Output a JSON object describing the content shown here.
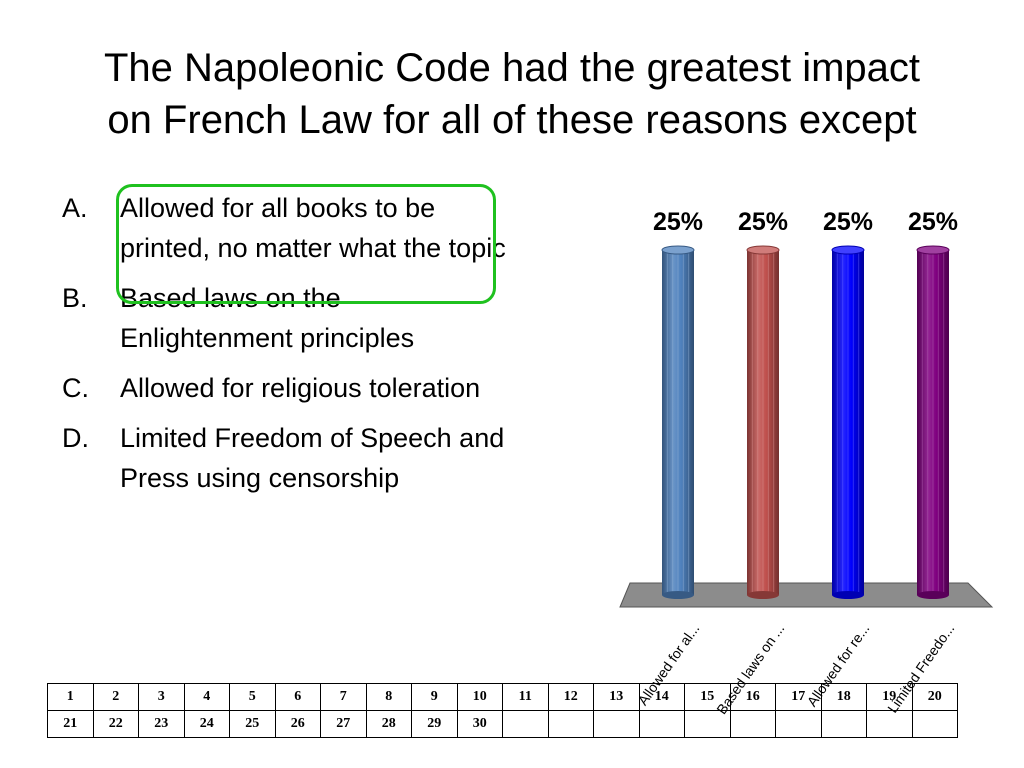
{
  "title": {
    "line1": "The Napoleonic Code had the greatest impact",
    "line2": "on French Law for all of these reasons except"
  },
  "answers": [
    {
      "letter": "A.",
      "text": "Allowed for all books to be printed, no matter what the topic"
    },
    {
      "letter": "B.",
      "text": "Based laws on the Enlightenment principles"
    },
    {
      "letter": "C.",
      "text": "Allowed for religious toleration"
    },
    {
      "letter": "D.",
      "text": "Limited Freedom of Speech and Press using censorship"
    }
  ],
  "chart_data": {
    "type": "bar",
    "categories": [
      "Allowed for al...",
      "Based laws on ...",
      "Allowed for re...",
      "Limited Freedo..."
    ],
    "values": [
      25,
      25,
      25,
      25
    ],
    "value_labels": [
      "25%",
      "25%",
      "25%",
      "25%"
    ],
    "colors": [
      "#4f81bd",
      "#c0504d",
      "#0000ff",
      "#800080"
    ],
    "ylim": [
      0,
      25
    ],
    "grid": false
  },
  "response_grid": {
    "row1": [
      "1",
      "2",
      "3",
      "4",
      "5",
      "6",
      "7",
      "8",
      "9",
      "10",
      "11",
      "12",
      "13",
      "14",
      "15",
      "16",
      "17",
      "18",
      "19",
      "20"
    ],
    "row2": [
      "21",
      "22",
      "23",
      "24",
      "25",
      "26",
      "27",
      "28",
      "29",
      "30",
      "",
      "",
      "",
      "",
      "",
      "",
      "",
      "",
      "",
      ""
    ]
  },
  "highlight_color": "#1fc11f"
}
